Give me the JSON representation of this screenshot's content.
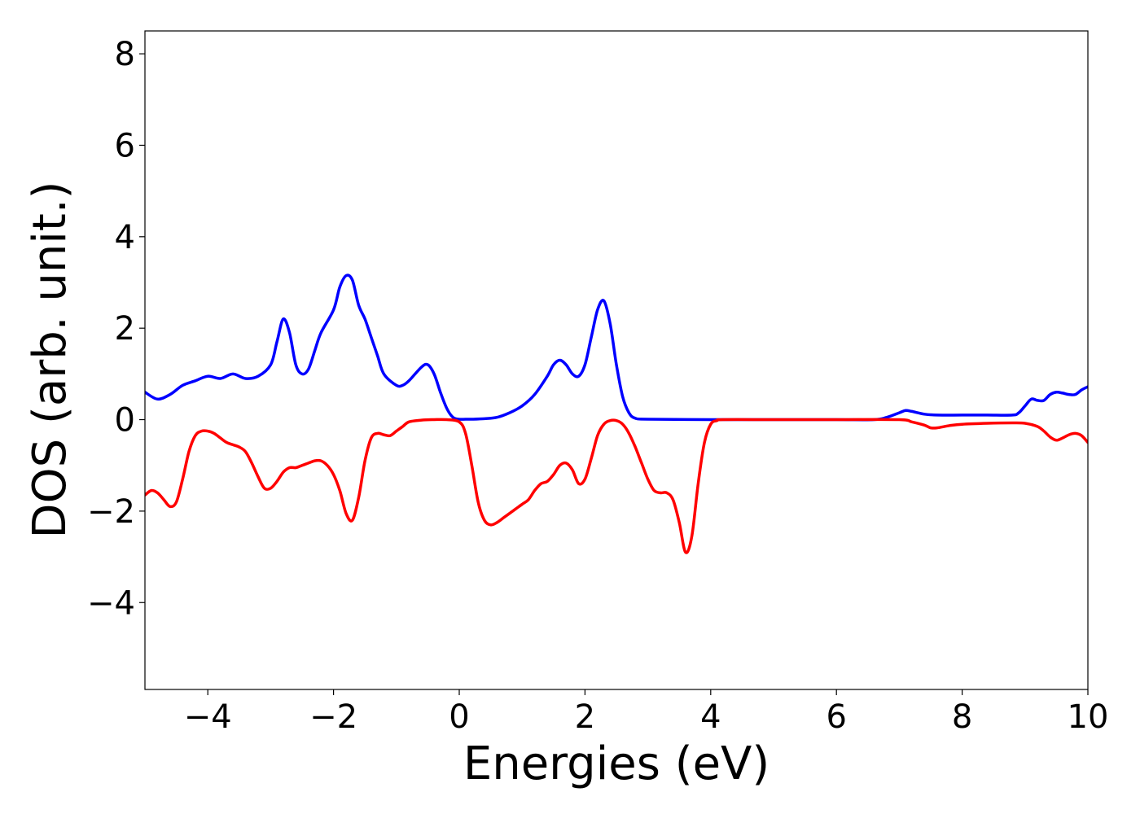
{
  "chart_data": {
    "type": "line",
    "title": "",
    "xlabel": "Energies (eV)",
    "ylabel": "DOS (arb. unit.)",
    "xlim": [
      -5,
      10
    ],
    "ylim": [
      -5.9,
      8.5
    ],
    "grid": false,
    "legend": "none",
    "xticks": [
      {
        "value": -4,
        "label": "−4"
      },
      {
        "value": -2,
        "label": "−2"
      },
      {
        "value": 0,
        "label": "0"
      },
      {
        "value": 2,
        "label": "2"
      },
      {
        "value": 4,
        "label": "4"
      },
      {
        "value": 6,
        "label": "6"
      },
      {
        "value": 8,
        "label": "8"
      },
      {
        "value": 10,
        "label": "10"
      }
    ],
    "yticks": [
      {
        "value": -4,
        "label": "−4"
      },
      {
        "value": -2,
        "label": "−2"
      },
      {
        "value": 0,
        "label": "0"
      },
      {
        "value": 2,
        "label": "2"
      },
      {
        "value": 4,
        "label": "4"
      },
      {
        "value": 6,
        "label": "6"
      },
      {
        "value": 8,
        "label": "8"
      }
    ],
    "series": [
      {
        "color": "#0000ff",
        "x": [
          -5,
          -4.8,
          -4.6,
          -4.4,
          -4.2,
          -4.0,
          -3.8,
          -3.6,
          -3.4,
          -3.2,
          -3.0,
          -2.9,
          -2.8,
          -2.7,
          -2.6,
          -2.5,
          -2.4,
          -2.3,
          -2.2,
          -2.0,
          -1.9,
          -1.8,
          -1.7,
          -1.6,
          -1.5,
          -1.4,
          -1.3,
          -1.2,
          -1.0,
          -0.9,
          -0.8,
          -0.6,
          -0.5,
          -0.4,
          -0.3,
          -0.2,
          -0.1,
          0.0,
          0.1,
          0.2,
          0.4,
          0.6,
          0.8,
          1.0,
          1.2,
          1.4,
          1.5,
          1.6,
          1.7,
          1.8,
          1.9,
          2.0,
          2.1,
          2.2,
          2.3,
          2.4,
          2.5,
          2.6,
          2.7,
          2.8,
          3.0,
          4.0,
          5.0,
          6.0,
          6.6,
          6.8,
          7.0,
          7.1,
          7.2,
          7.4,
          7.6,
          8.0,
          8.4,
          8.8,
          8.9,
          9.0,
          9.1,
          9.2,
          9.3,
          9.4,
          9.5,
          9.6,
          9.7,
          9.8,
          9.9,
          10.0
        ],
        "y": [
          0.6,
          0.45,
          0.55,
          0.75,
          0.85,
          0.95,
          0.9,
          1.0,
          0.9,
          0.95,
          1.2,
          1.7,
          2.2,
          1.9,
          1.2,
          1.0,
          1.1,
          1.5,
          1.9,
          2.4,
          2.9,
          3.15,
          3.05,
          2.5,
          2.2,
          1.8,
          1.4,
          1.0,
          0.75,
          0.75,
          0.85,
          1.15,
          1.2,
          1.0,
          0.6,
          0.25,
          0.05,
          0.01,
          0.01,
          0.01,
          0.02,
          0.05,
          0.15,
          0.3,
          0.55,
          0.95,
          1.2,
          1.3,
          1.2,
          1.0,
          0.95,
          1.2,
          1.8,
          2.4,
          2.6,
          2.1,
          1.2,
          0.5,
          0.15,
          0.03,
          0.01,
          0.0,
          0.0,
          0.0,
          0.0,
          0.05,
          0.15,
          0.2,
          0.18,
          0.12,
          0.1,
          0.1,
          0.1,
          0.1,
          0.15,
          0.3,
          0.45,
          0.42,
          0.42,
          0.55,
          0.6,
          0.58,
          0.55,
          0.55,
          0.65,
          0.72
        ]
      },
      {
        "color": "#ff0000",
        "x": [
          -5,
          -4.9,
          -4.8,
          -4.7,
          -4.6,
          -4.5,
          -4.4,
          -4.3,
          -4.2,
          -4.1,
          -4.0,
          -3.9,
          -3.8,
          -3.7,
          -3.6,
          -3.5,
          -3.4,
          -3.3,
          -3.2,
          -3.1,
          -3.0,
          -2.9,
          -2.8,
          -2.7,
          -2.6,
          -2.5,
          -2.4,
          -2.3,
          -2.2,
          -2.1,
          -2.0,
          -1.9,
          -1.8,
          -1.7,
          -1.6,
          -1.5,
          -1.4,
          -1.3,
          -1.2,
          -1.1,
          -1.0,
          -0.9,
          -0.8,
          -0.6,
          -0.4,
          -0.2,
          0.0,
          0.1,
          0.2,
          0.3,
          0.4,
          0.5,
          0.6,
          0.7,
          0.8,
          0.9,
          1.0,
          1.1,
          1.2,
          1.3,
          1.4,
          1.5,
          1.6,
          1.7,
          1.8,
          1.9,
          2.0,
          2.1,
          2.2,
          2.3,
          2.4,
          2.5,
          2.6,
          2.7,
          2.8,
          2.9,
          3.0,
          3.1,
          3.2,
          3.3,
          3.4,
          3.5,
          3.6,
          3.7,
          3.8,
          3.9,
          4.0,
          4.1,
          4.2,
          5.0,
          6.0,
          7.0,
          7.2,
          7.4,
          7.5,
          7.6,
          7.8,
          8.0,
          8.4,
          8.8,
          9.0,
          9.2,
          9.3,
          9.4,
          9.5,
          9.6,
          9.7,
          9.8,
          9.9,
          10.0
        ],
        "y": [
          -1.65,
          -1.55,
          -1.6,
          -1.75,
          -1.9,
          -1.8,
          -1.3,
          -0.7,
          -0.35,
          -0.25,
          -0.25,
          -0.3,
          -0.4,
          -0.5,
          -0.55,
          -0.6,
          -0.7,
          -0.95,
          -1.25,
          -1.5,
          -1.5,
          -1.35,
          -1.15,
          -1.05,
          -1.05,
          -1.0,
          -0.95,
          -0.9,
          -0.9,
          -1.0,
          -1.2,
          -1.55,
          -2.05,
          -2.2,
          -1.7,
          -0.9,
          -0.4,
          -0.3,
          -0.33,
          -0.35,
          -0.25,
          -0.15,
          -0.05,
          -0.01,
          0.0,
          0.0,
          -0.05,
          -0.3,
          -1.0,
          -1.8,
          -2.2,
          -2.3,
          -2.25,
          -2.15,
          -2.05,
          -1.95,
          -1.85,
          -1.75,
          -1.55,
          -1.4,
          -1.35,
          -1.2,
          -1.0,
          -0.95,
          -1.1,
          -1.4,
          -1.3,
          -0.85,
          -0.35,
          -0.1,
          -0.02,
          -0.02,
          -0.1,
          -0.3,
          -0.6,
          -0.95,
          -1.3,
          -1.55,
          -1.6,
          -1.6,
          -1.75,
          -2.25,
          -2.9,
          -2.55,
          -1.4,
          -0.5,
          -0.1,
          -0.02,
          0.0,
          0.0,
          0.0,
          0.0,
          -0.05,
          -0.12,
          -0.18,
          -0.18,
          -0.13,
          -0.1,
          -0.08,
          -0.07,
          -0.08,
          -0.15,
          -0.25,
          -0.38,
          -0.45,
          -0.4,
          -0.33,
          -0.3,
          -0.35,
          -0.5
        ]
      }
    ]
  }
}
